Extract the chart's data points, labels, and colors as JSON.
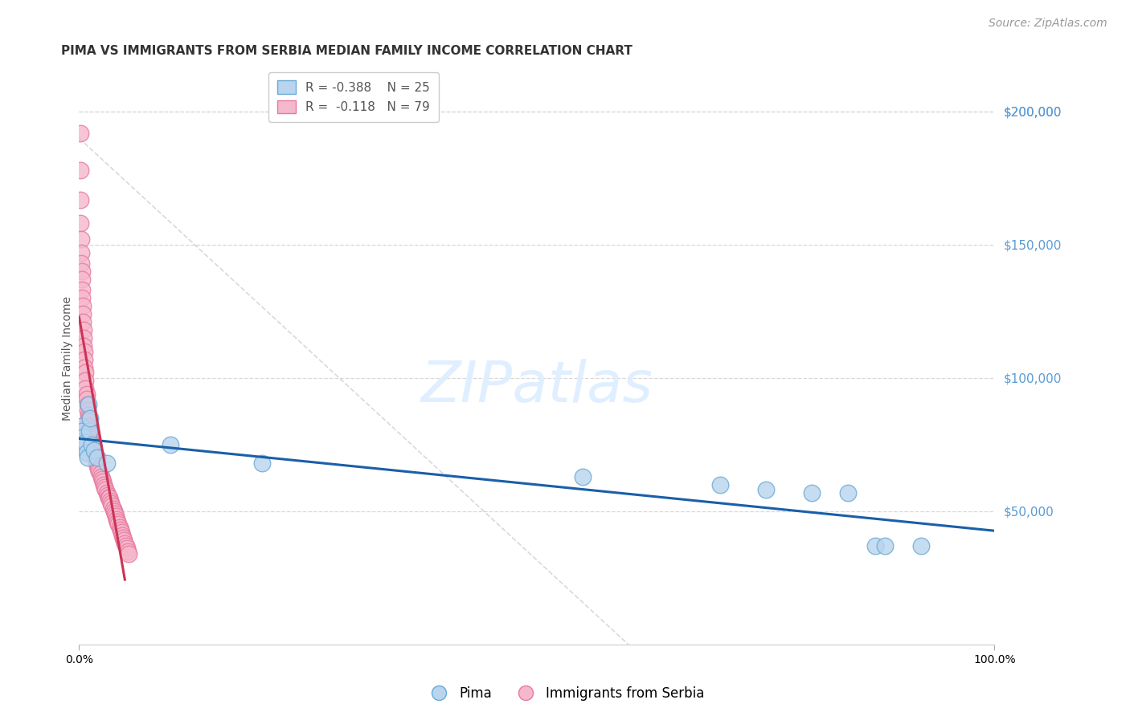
{
  "title": "PIMA VS IMMIGRANTS FROM SERBIA MEDIAN FAMILY INCOME CORRELATION CHART",
  "source": "Source: ZipAtlas.com",
  "ylabel": "Median Family Income",
  "ytick_values": [
    50000,
    100000,
    150000,
    200000
  ],
  "ymin": 0,
  "ymax": 215000,
  "xmin": 0.0,
  "xmax": 1.0,
  "legend_blue_r": "R = -0.388",
  "legend_blue_n": "N = 25",
  "legend_pink_r": "R =  -0.118",
  "legend_pink_n": "N = 79",
  "legend_blue_label": "Pima",
  "legend_pink_label": "Immigrants from Serbia",
  "blue_color": "#b8d4ee",
  "blue_edge": "#6aaad4",
  "pink_color": "#f5b8cb",
  "pink_edge": "#e878a0",
  "trendline_blue": "#1a5fa8",
  "trendline_pink": "#cc3355",
  "diag_color": "#d0d0d0",
  "grid_color": "#d8d8d8",
  "pima_x": [
    0.002,
    0.003,
    0.004,
    0.005,
    0.006,
    0.007,
    0.008,
    0.009,
    0.01,
    0.011,
    0.012,
    0.014,
    0.016,
    0.02,
    0.03,
    0.1,
    0.2,
    0.55,
    0.7,
    0.75,
    0.8,
    0.84,
    0.87,
    0.88,
    0.92
  ],
  "pima_y": [
    82000,
    80000,
    75000,
    78000,
    74000,
    76000,
    72000,
    70000,
    90000,
    80000,
    85000,
    75000,
    73000,
    70000,
    68000,
    75000,
    68000,
    63000,
    60000,
    58000,
    57000,
    57000,
    37000,
    37000,
    37000
  ],
  "serbia_x": [
    0.001,
    0.001,
    0.001,
    0.001,
    0.002,
    0.002,
    0.002,
    0.003,
    0.003,
    0.003,
    0.003,
    0.004,
    0.004,
    0.004,
    0.005,
    0.005,
    0.005,
    0.006,
    0.006,
    0.006,
    0.007,
    0.007,
    0.007,
    0.008,
    0.008,
    0.009,
    0.009,
    0.01,
    0.01,
    0.01,
    0.011,
    0.011,
    0.012,
    0.012,
    0.013,
    0.013,
    0.014,
    0.015,
    0.015,
    0.016,
    0.017,
    0.018,
    0.019,
    0.02,
    0.02,
    0.021,
    0.022,
    0.023,
    0.024,
    0.025,
    0.026,
    0.027,
    0.028,
    0.029,
    0.03,
    0.031,
    0.032,
    0.033,
    0.034,
    0.035,
    0.036,
    0.037,
    0.038,
    0.039,
    0.04,
    0.041,
    0.042,
    0.043,
    0.044,
    0.045,
    0.046,
    0.047,
    0.048,
    0.049,
    0.05,
    0.051,
    0.052,
    0.053,
    0.054
  ],
  "serbia_y": [
    192000,
    178000,
    167000,
    158000,
    152000,
    147000,
    143000,
    140000,
    137000,
    133000,
    130000,
    127000,
    124000,
    121000,
    118000,
    115000,
    112000,
    110000,
    107000,
    104000,
    102000,
    99000,
    96000,
    94000,
    92000,
    90000,
    88000,
    86000,
    85000,
    84000,
    82000,
    81000,
    79000,
    78000,
    77000,
    76000,
    75000,
    74000,
    73000,
    72000,
    71000,
    70000,
    69000,
    68000,
    67000,
    66000,
    65000,
    64000,
    63000,
    62000,
    61000,
    60000,
    59000,
    58000,
    57000,
    56000,
    55000,
    55000,
    54000,
    53000,
    52000,
    51000,
    50000,
    49000,
    48000,
    47000,
    46000,
    45000,
    44000,
    43000,
    42000,
    41000,
    40000,
    39000,
    38000,
    37000,
    36000,
    35000,
    34000
  ],
  "title_fontsize": 11,
  "axis_label_fontsize": 10,
  "tick_fontsize": 10,
  "legend_fontsize": 11,
  "source_fontsize": 10
}
